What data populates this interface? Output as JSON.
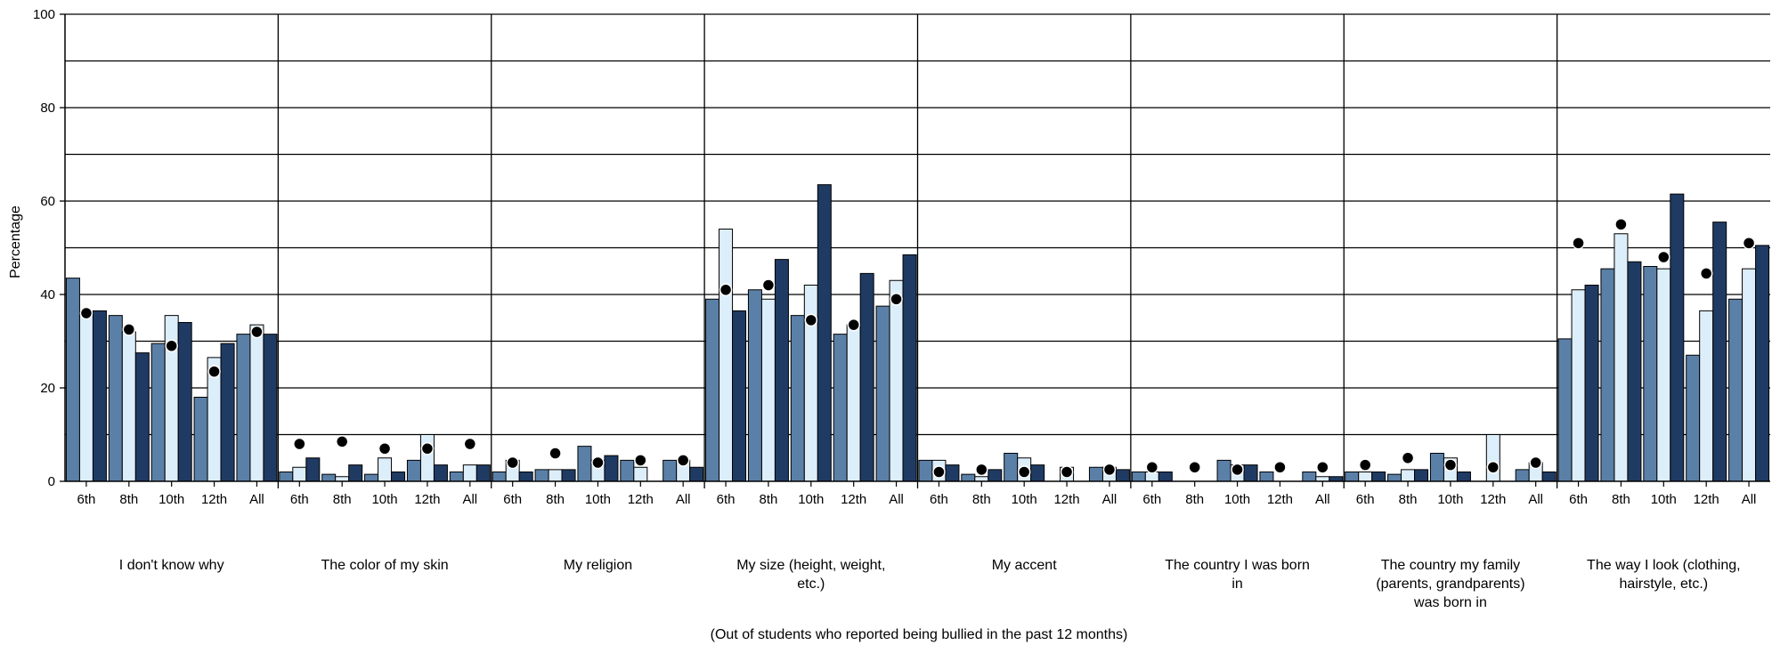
{
  "colors": {
    "bar_dark_blue": "#1f3b63",
    "bar_mid_blue": "#5b80a8",
    "bar_light_blue": "#ddeefb",
    "marker": "#000000",
    "grid": "#000000"
  },
  "chart_data": {
    "type": "bar",
    "ylabel": "Percentage",
    "xlabel": "(Out of students who reported being bullied in the past 12 months)",
    "ylim": [
      0,
      100
    ],
    "yticks": [
      0,
      20,
      40,
      60,
      80,
      100
    ],
    "grid": true,
    "grades": [
      "6th",
      "8th",
      "10th",
      "12th",
      "All"
    ],
    "groups": [
      {
        "label": [
          "I don't know why"
        ],
        "bars": [
          [
            43.5,
            36,
            36.5
          ],
          [
            35.5,
            32,
            27.5
          ],
          [
            29.5,
            35.5,
            34
          ],
          [
            18,
            26.5,
            29.5
          ],
          [
            31.5,
            33.5,
            31.5
          ]
        ],
        "dots": [
          36,
          32.5,
          29,
          23.5,
          32
        ]
      },
      {
        "label": [
          "The color of my skin"
        ],
        "bars": [
          [
            2,
            3,
            5
          ],
          [
            1.5,
            1,
            3.5
          ],
          [
            1.5,
            5,
            2
          ],
          [
            4.5,
            10,
            3.5
          ],
          [
            2,
            3.5,
            3.5
          ]
        ],
        "dots": [
          8,
          8.5,
          7,
          7,
          8
        ]
      },
      {
        "label": [
          "My religion"
        ],
        "bars": [
          [
            2,
            4.5,
            2
          ],
          [
            2.5,
            2.5,
            2.5
          ],
          [
            7.5,
            4.5,
            5.5
          ],
          [
            4.5,
            3,
            0
          ],
          [
            4.5,
            4.5,
            3
          ]
        ],
        "dots": [
          4,
          6,
          4,
          4.5,
          4.5
        ]
      },
      {
        "label": [
          "My size (height, weight,",
          "etc.)"
        ],
        "bars": [
          [
            39,
            54,
            36.5
          ],
          [
            41,
            39,
            47.5
          ],
          [
            35.5,
            42,
            63.5
          ],
          [
            31.5,
            33.5,
            44.5
          ],
          [
            37.5,
            43,
            48.5
          ]
        ],
        "dots": [
          41,
          42,
          34.5,
          33.5,
          39
        ]
      },
      {
        "label": [
          "My accent"
        ],
        "bars": [
          [
            4.5,
            4.5,
            3.5
          ],
          [
            1.5,
            1,
            2.5
          ],
          [
            6,
            5,
            3.5
          ],
          [
            0,
            3,
            0
          ],
          [
            3,
            3,
            2.5
          ]
        ],
        "dots": [
          2,
          2.5,
          2,
          2,
          2.5
        ]
      },
      {
        "label": [
          "The country I was born",
          "in"
        ],
        "bars": [
          [
            2,
            2,
            2
          ],
          [
            0,
            0,
            0
          ],
          [
            4.5,
            3.5,
            3.5
          ],
          [
            2,
            0,
            0
          ],
          [
            2,
            1,
            1
          ]
        ],
        "dots": [
          3,
          3,
          2.5,
          3,
          3
        ]
      },
      {
        "label": [
          "The country my family",
          "(parents, grandparents)",
          "was born in"
        ],
        "bars": [
          [
            2,
            2,
            2
          ],
          [
            1.5,
            2.5,
            2.5
          ],
          [
            6,
            5,
            2
          ],
          [
            0,
            10,
            0
          ],
          [
            2.5,
            4,
            2
          ]
        ],
        "dots": [
          3.5,
          5,
          3.5,
          3,
          4
        ]
      },
      {
        "label": [
          "The way I look (clothing,",
          "hairstyle, etc.)"
        ],
        "bars": [
          [
            30.5,
            41,
            42
          ],
          [
            45.5,
            53,
            47
          ],
          [
            46,
            45.5,
            61.5
          ],
          [
            27,
            36.5,
            55.5
          ],
          [
            39,
            45.5,
            50.5
          ]
        ],
        "dots": [
          51,
          55,
          48,
          44.5,
          51
        ]
      }
    ]
  }
}
